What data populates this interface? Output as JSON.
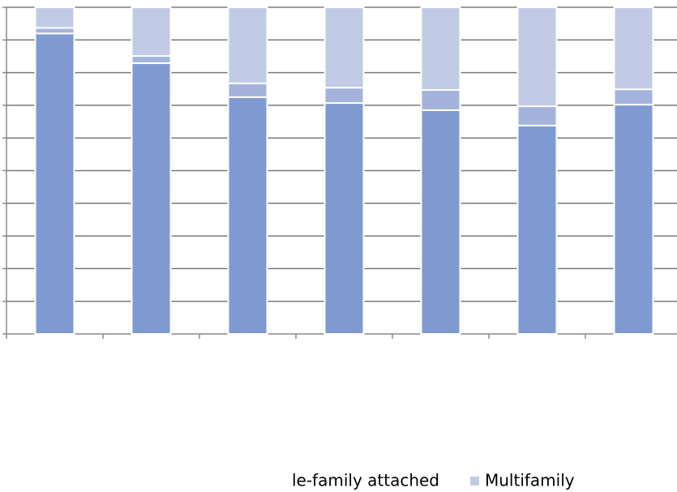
{
  "chart_data": {
    "type": "stacked_bar",
    "categories": [
      null,
      null,
      null,
      null,
      null,
      null,
      null
    ],
    "series": [
      {
        "color": "#7f9ad0",
        "values": [
          92.0,
          82.9,
          72.5,
          70.7,
          68.5,
          63.8,
          70.2
        ]
      },
      {
        "name": "le-family attached",
        "color": "#a3b3dc",
        "values": [
          1.7,
          2.2,
          4.2,
          4.7,
          6.2,
          5.9,
          4.7
        ]
      },
      {
        "name": "Multifamily",
        "color": "#c1cbe6",
        "values": [
          6.3,
          14.9,
          23.3,
          24.6,
          25.3,
          30.3,
          25.1
        ]
      }
    ],
    "ylim": [
      0,
      100
    ],
    "yticks": [
      0,
      10,
      20,
      30,
      40,
      50,
      60,
      70,
      80,
      90,
      100
    ],
    "grid": true
  }
}
